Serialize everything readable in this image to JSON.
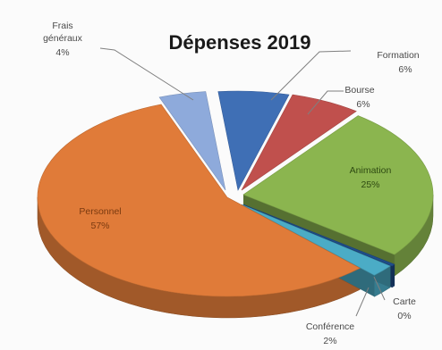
{
  "chart_data": {
    "type": "pie",
    "style": "3d-exploded",
    "title": "Dépenses 2019",
    "slices": [
      {
        "name": "Formation",
        "pct_label": "6%",
        "value": 6,
        "color": "#3f6fb5"
      },
      {
        "name": "Bourse",
        "pct_label": "6%",
        "value": 6,
        "color": "#c0504d"
      },
      {
        "name": "Animation",
        "pct_label": "25%",
        "value": 25,
        "color": "#8bb54f"
      },
      {
        "name": "Carte",
        "pct_label": "0%",
        "value": 0,
        "color": "#1f4e8c"
      },
      {
        "name": "Conférence",
        "pct_label": "2%",
        "value": 2,
        "color": "#4bacc6"
      },
      {
        "name": "Personnel",
        "pct_label": "57%",
        "value": 57,
        "color": "#e07b39"
      },
      {
        "name": "Frais généraux",
        "name_lines": [
          "Frais",
          "généraux"
        ],
        "pct_label": "4%",
        "value": 4,
        "color": "#8eaadb"
      }
    ],
    "legend": "none",
    "data_labels": "outside-with-leader-lines"
  }
}
